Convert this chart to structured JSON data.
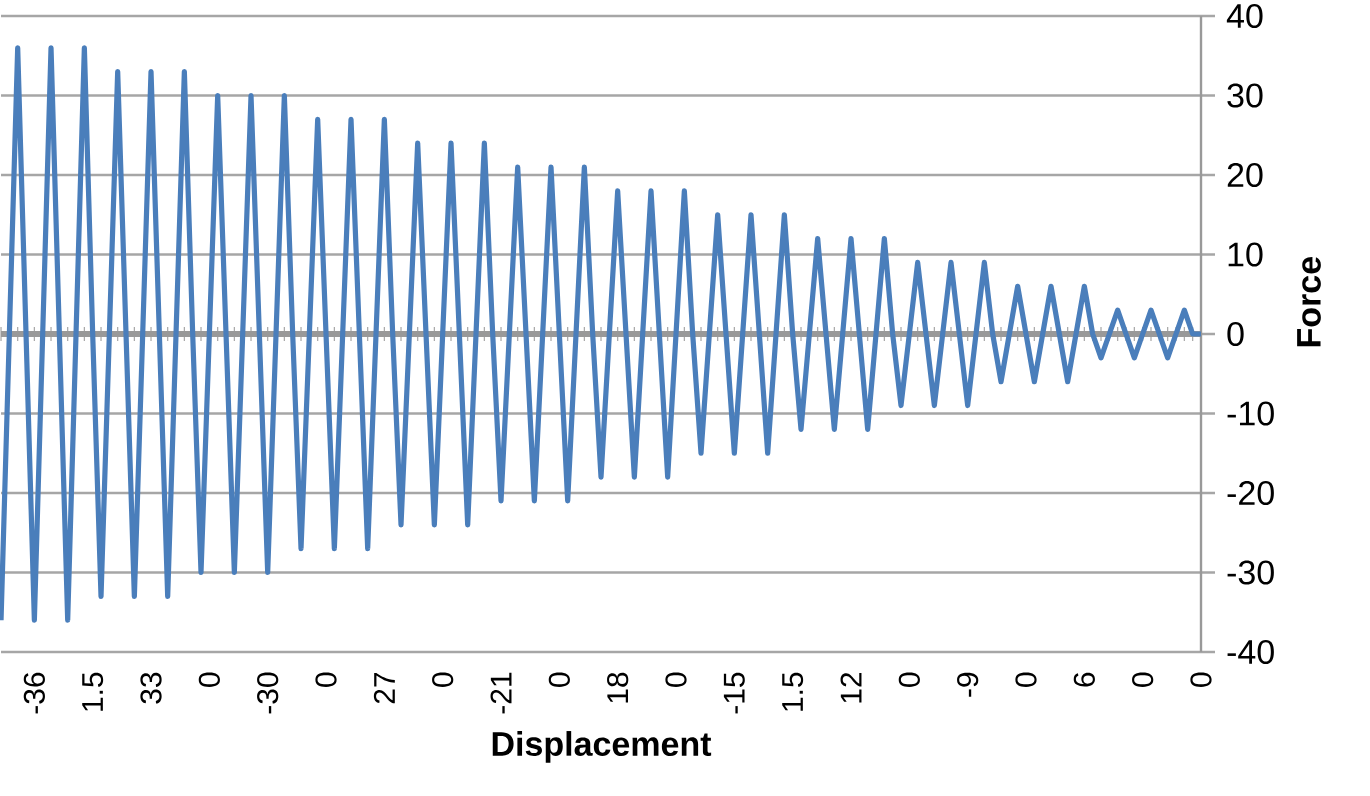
{
  "chart_data": {
    "type": "line",
    "xlabel": "Displacement",
    "ylabel": "Force",
    "categories": [
      null,
      null,
      null,
      null,
      "-36",
      null,
      null,
      null,
      null,
      null,
      null,
      "1.5",
      null,
      null,
      null,
      null,
      null,
      null,
      "33",
      null,
      null,
      null,
      null,
      null,
      null,
      "0",
      null,
      null,
      null,
      null,
      null,
      null,
      "-30",
      null,
      null,
      null,
      null,
      null,
      null,
      "0",
      null,
      null,
      null,
      null,
      null,
      null,
      "27",
      null,
      null,
      null,
      null,
      null,
      null,
      "0",
      null,
      null,
      null,
      null,
      null,
      null,
      "-21",
      null,
      null,
      null,
      null,
      null,
      null,
      "0",
      null,
      null,
      null,
      null,
      null,
      null,
      "18",
      null,
      null,
      null,
      null,
      null,
      null,
      "0",
      null,
      null,
      null,
      null,
      null,
      null,
      "-15",
      null,
      null,
      null,
      null,
      null,
      null,
      "1.5",
      null,
      null,
      null,
      null,
      null,
      null,
      "12",
      null,
      null,
      null,
      null,
      null,
      null,
      "0",
      null,
      null,
      null,
      null,
      null,
      null,
      "-9",
      null,
      null,
      null,
      null,
      null,
      null,
      "0",
      null,
      null,
      null,
      null,
      null,
      null,
      "6",
      null,
      null,
      null,
      null,
      null,
      null,
      "0",
      null,
      null,
      null,
      null,
      null,
      null,
      "0"
    ],
    "values": [
      -36,
      0,
      36,
      0,
      -36,
      0,
      36,
      0,
      -36,
      0,
      36,
      0,
      -33,
      0,
      33,
      0,
      -33,
      0,
      33,
      0,
      -33,
      0,
      33,
      0,
      -30,
      0,
      30,
      0,
      -30,
      0,
      30,
      0,
      -30,
      0,
      30,
      0,
      -27,
      0,
      27,
      0,
      -27,
      0,
      27,
      0,
      -27,
      0,
      27,
      0,
      -24,
      0,
      24,
      0,
      -24,
      0,
      24,
      0,
      -24,
      0,
      24,
      0,
      -21,
      0,
      21,
      0,
      -21,
      0,
      21,
      0,
      -21,
      0,
      21,
      0,
      -18,
      0,
      18,
      0,
      -18,
      0,
      18,
      0,
      -18,
      0,
      18,
      0,
      -15,
      0,
      15,
      0,
      -15,
      0,
      15,
      0,
      -15,
      0,
      15,
      0,
      -12,
      0,
      12,
      0,
      -12,
      0,
      12,
      0,
      -12,
      0,
      12,
      0,
      -9,
      0,
      9,
      0,
      -9,
      0,
      9,
      0,
      -9,
      0,
      9,
      0,
      -6,
      0,
      6,
      0,
      -6,
      0,
      6,
      0,
      -6,
      0,
      6,
      0,
      -3,
      0,
      3,
      0,
      -3,
      0,
      3,
      0,
      -3,
      0,
      3,
      0,
      0
    ],
    "color": "#4a7ebb",
    "ylim": [
      -40,
      40
    ],
    "yticks": [
      -40,
      -30,
      -20,
      -10,
      0,
      10,
      20,
      30,
      40
    ],
    "grid": "y"
  }
}
